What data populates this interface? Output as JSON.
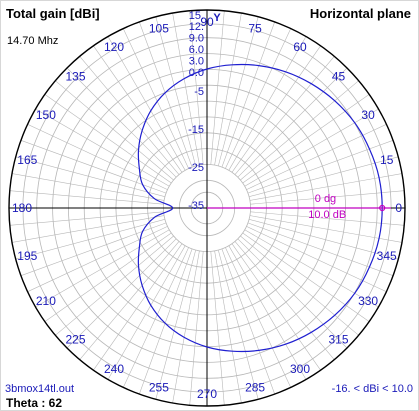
{
  "header": {
    "title": "Total gain [dBi]",
    "plane": "Horizontal plane",
    "frequency": "14.70 Mhz"
  },
  "footer": {
    "filename": "3bmox14tl.out",
    "theta": "Theta : 62",
    "scale": "-16. < dBi < 10.0"
  },
  "colors": {
    "trace": "#1f1fd0",
    "marker": "#c000c0",
    "grid": "#b8b8b8",
    "axis": "#000000",
    "label": "#1a1ab8"
  },
  "chart_data": {
    "type": "polar",
    "title": "Total gain [dBi]",
    "angle_unit": "degrees",
    "angle_labels": [
      "0",
      "15",
      "30",
      "45",
      "60",
      "75",
      "90",
      "105",
      "120",
      "135",
      "150",
      "165",
      "180",
      "195",
      "210",
      "225",
      "240",
      "255",
      "270",
      "285",
      "300",
      "315",
      "330",
      "345"
    ],
    "radial_labels": [
      "15.",
      "12.",
      "9.0",
      "6.0",
      "3.0",
      "0.0",
      "-5",
      "-15",
      "-25",
      "-35"
    ],
    "axis_marker_label": "Y",
    "marker": {
      "angle_label": "0 dg",
      "gain_label": "10.0 dB",
      "angle_deg": 0,
      "gain_dbi": 10.0
    },
    "series": [
      {
        "angles_deg": [
          0,
          10,
          20,
          30,
          40,
          50,
          60,
          70,
          80,
          90,
          100,
          110,
          120,
          130,
          140,
          150,
          160,
          170,
          180,
          190,
          200,
          210,
          220,
          230,
          240,
          250,
          260,
          270,
          280,
          290,
          300,
          310,
          320,
          330,
          340,
          350
        ],
        "gain_dbi": [
          10.0,
          9.9,
          9.4,
          8.8,
          7.8,
          6.6,
          5.3,
          3.8,
          2.2,
          0.5,
          -1.5,
          -3.8,
          -6.5,
          -9.5,
          -12.5,
          -15.5,
          -18,
          -22,
          -27,
          -22,
          -18,
          -15.5,
          -12.5,
          -9.5,
          -6.5,
          -3.8,
          -1.5,
          0.5,
          2.2,
          3.8,
          5.3,
          6.6,
          7.8,
          8.8,
          9.4,
          9.9
        ]
      }
    ]
  }
}
